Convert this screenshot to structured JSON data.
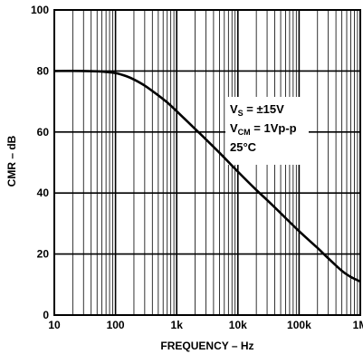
{
  "chart_data": {
    "type": "line",
    "xlabel": "FREQUENCY – Hz",
    "ylabel": "CMR – dB",
    "x_scale": "log",
    "xlim": [
      10,
      1000000
    ],
    "ylim": [
      0,
      100
    ],
    "grid": true,
    "x_ticks": [
      {
        "value": 10,
        "label": "10"
      },
      {
        "value": 100,
        "label": "100"
      },
      {
        "value": 1000,
        "label": "1k"
      },
      {
        "value": 10000,
        "label": "10k"
      },
      {
        "value": 100000,
        "label": "100k"
      },
      {
        "value": 1000000,
        "label": "1M"
      }
    ],
    "y_ticks": [
      {
        "value": 0,
        "label": "0"
      },
      {
        "value": 20,
        "label": "20"
      },
      {
        "value": 40,
        "label": "40"
      },
      {
        "value": 60,
        "label": "60"
      },
      {
        "value": 80,
        "label": "80"
      },
      {
        "value": 100,
        "label": "100"
      }
    ],
    "series": [
      {
        "color": "#000000",
        "x": [
          10,
          30,
          60,
          100,
          150,
          200,
          300,
          500,
          700,
          1000,
          2000,
          3000,
          5000,
          10000,
          20000,
          30000,
          50000,
          100000,
          200000,
          300000,
          500000,
          700000,
          1000000
        ],
        "y": [
          80,
          80,
          79.8,
          79.3,
          78.3,
          77.2,
          75.2,
          72,
          69.7,
          66.8,
          61,
          57.6,
          53.2,
          47,
          41,
          37.7,
          33.4,
          27.5,
          22,
          18.6,
          14.5,
          12.5,
          11
        ]
      }
    ],
    "annotation": {
      "line1_main": "V",
      "line1_sub": "S",
      "line1_rest": " = ±15V",
      "line2_main": "V",
      "line2_sub": "CM",
      "line2_rest": " = 1Vp-p",
      "line3": "25°C"
    }
  }
}
